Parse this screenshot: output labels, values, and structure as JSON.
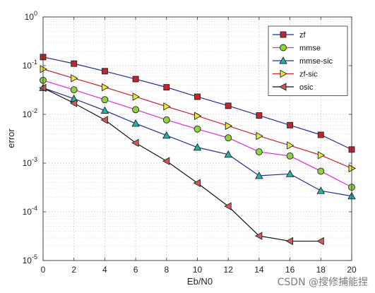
{
  "watermark": "CSDN @搜修捕能捏",
  "chart_data": {
    "type": "line",
    "title": "",
    "xlabel": "Eb/N0",
    "ylabel": "error",
    "x": [
      0,
      2,
      4,
      6,
      8,
      10,
      12,
      14,
      16,
      18,
      20
    ],
    "xlim": [
      0,
      20
    ],
    "ylim": [
      1e-05,
      1
    ],
    "yscale": "log",
    "x_ticks": [
      "0",
      "2",
      "4",
      "6",
      "8",
      "10",
      "12",
      "14",
      "16",
      "18",
      "20"
    ],
    "y_ticks": [
      {
        "base": "10",
        "exp": "0",
        "value": 1
      },
      {
        "base": "10",
        "exp": "-1",
        "value": 0.1
      },
      {
        "base": "10",
        "exp": "-2",
        "value": 0.01
      },
      {
        "base": "10",
        "exp": "-3",
        "value": 0.001
      },
      {
        "base": "10",
        "exp": "-4",
        "value": 0.0001
      },
      {
        "base": "10",
        "exp": "-5",
        "value": 1e-05
      }
    ],
    "grid": true,
    "legend_position": "top-right",
    "series": [
      {
        "name": "zf",
        "color": "#1f2f8f",
        "marker": "square",
        "marker_fill": "#c0262c",
        "x": [
          0,
          2,
          4,
          6,
          8,
          10,
          12,
          14,
          16,
          18,
          20
        ],
        "values": [
          0.15,
          0.11,
          0.077,
          0.053,
          0.036,
          0.023,
          0.015,
          0.0095,
          0.006,
          0.0038,
          0.0019
        ]
      },
      {
        "name": "mmse",
        "color": "#e02ad8",
        "marker": "circle",
        "marker_fill": "#8fd13f",
        "x": [
          0,
          2,
          4,
          6,
          8,
          10,
          12,
          14,
          16,
          18,
          20
        ],
        "values": [
          0.05,
          0.032,
          0.02,
          0.0125,
          0.0077,
          0.005,
          0.0033,
          0.0017,
          0.0014,
          0.00068,
          0.00032
        ]
      },
      {
        "name": "mmse-sic",
        "color": "#1f2f8f",
        "marker": "triangle-up",
        "marker_fill": "#22b3a8",
        "x": [
          0,
          2,
          4,
          6,
          8,
          10,
          12,
          14,
          16,
          18,
          20
        ],
        "values": [
          0.035,
          0.021,
          0.012,
          0.0065,
          0.0037,
          0.0021,
          0.0015,
          0.00055,
          0.0006,
          0.00027,
          0.00021
        ]
      },
      {
        "name": "zf-sic",
        "color": "#c0262c",
        "marker": "triangle-right",
        "marker_fill": "#e8e83a",
        "x": [
          0,
          2,
          4,
          6,
          8,
          10,
          12,
          14,
          16,
          18,
          20
        ],
        "values": [
          0.085,
          0.055,
          0.036,
          0.023,
          0.0145,
          0.0093,
          0.0058,
          0.0036,
          0.0023,
          0.00145,
          0.00078
        ]
      },
      {
        "name": "osic",
        "color": "#111111",
        "marker": "triangle-left",
        "marker_fill": "#d05a5a",
        "x": [
          0,
          2,
          4,
          6,
          8,
          10,
          12,
          14,
          16,
          18
        ],
        "values": [
          0.035,
          0.017,
          0.0077,
          0.0026,
          0.0011,
          0.00039,
          0.00013,
          3.2e-05,
          2.5e-05,
          2.5e-05
        ]
      }
    ]
  }
}
